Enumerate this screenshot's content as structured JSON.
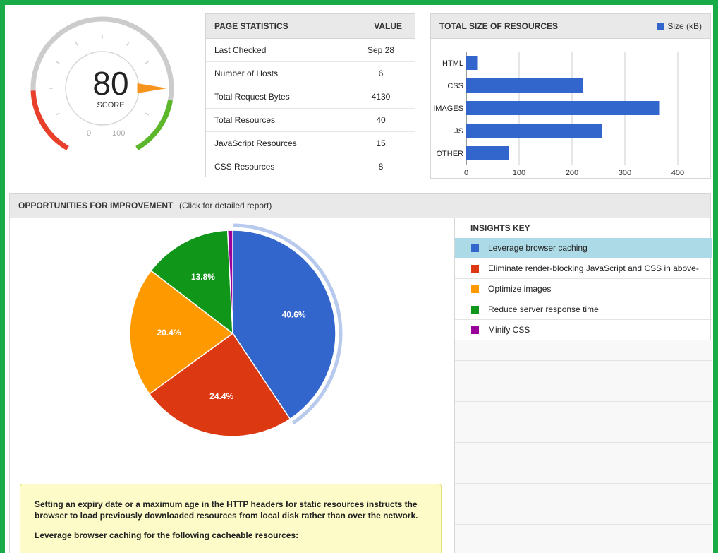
{
  "score": {
    "value": "80",
    "label": "SCORE",
    "min_label": "0",
    "max_label": "100",
    "fraction": 0.8
  },
  "page_statistics": {
    "header": "PAGE STATISTICS",
    "value_header": "VALUE",
    "rows": [
      {
        "label": "Last Checked",
        "value": "Sep 28"
      },
      {
        "label": "Number of Hosts",
        "value": "6"
      },
      {
        "label": "Total Request Bytes",
        "value": "4130"
      },
      {
        "label": "Total Resources",
        "value": "40"
      },
      {
        "label": "JavaScript Resources",
        "value": "15"
      },
      {
        "label": "CSS Resources",
        "value": "8"
      }
    ]
  },
  "resource_sizes": {
    "header": "TOTAL SIZE OF RESOURCES",
    "legend": "Size (kB)",
    "color": "#3366cc"
  },
  "opportunities": {
    "header": "OPPORTUNITIES FOR IMPROVEMENT",
    "subheader": "(Click for detailed report)"
  },
  "insights": {
    "header": "INSIGHTS KEY",
    "items": [
      {
        "label": "Leverage browser caching",
        "color": "#3366cc"
      },
      {
        "label": "Eliminate render-blocking JavaScript and CSS in above-",
        "color": "#dc3912"
      },
      {
        "label": "Optimize images",
        "color": "#ff9900"
      },
      {
        "label": "Reduce server response time",
        "color": "#109618"
      },
      {
        "label": "Minify CSS",
        "color": "#990099"
      }
    ]
  },
  "note": {
    "paragraph": "Setting an expiry date or a maximum age in the HTTP headers for static resources instructs the browser to load previously downloaded resources from local disk rather than over the network.",
    "subheading": "Leverage browser caching for the following cacheable resources:"
  },
  "chart_data": [
    {
      "type": "bar",
      "orientation": "horizontal",
      "categories": [
        "HTML",
        "CSS",
        "IMAGES",
        "JS",
        "OTHER"
      ],
      "series": [
        {
          "name": "Size (kB)",
          "values": [
            22,
            220,
            366,
            256,
            80
          ]
        }
      ],
      "xlim": [
        0,
        400
      ],
      "xticks": [
        0,
        100,
        200,
        300,
        400
      ],
      "grid": true,
      "legend": "top-right"
    },
    {
      "type": "pie",
      "labels": [
        "Leverage browser caching",
        "Eliminate render-blocking JavaScript and CSS in above-",
        "Optimize images",
        "Reduce server response time",
        "Minify CSS"
      ],
      "values": [
        40.6,
        24.4,
        20.4,
        13.8,
        0.8
      ],
      "value_labels": [
        "40.6%",
        "24.4%",
        "20.4%",
        "13.8%",
        ""
      ],
      "colors": [
        "#3366cc",
        "#dc3912",
        "#ff9900",
        "#109618",
        "#990099"
      ],
      "highlighted": "Leverage browser caching"
    }
  ]
}
